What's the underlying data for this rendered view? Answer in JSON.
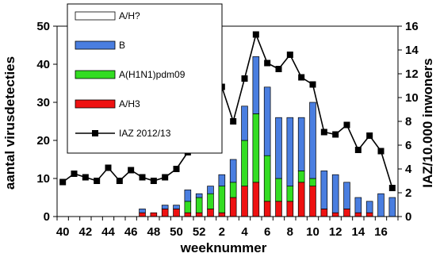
{
  "chart_data": {
    "type": "bar",
    "xlabel": "weeknummer",
    "ylabel_left": "aantal virusdetecties",
    "ylabel_right": "IAZ/10.000 inwoners",
    "ylim_left": [
      0,
      50
    ],
    "ylim_right": [
      0,
      16
    ],
    "yticks_left": [
      "0",
      "10",
      "20",
      "30",
      "40",
      "50"
    ],
    "yticks_right": [
      "0",
      "2",
      "4",
      "6",
      "8",
      "10",
      "12",
      "14",
      "16"
    ],
    "weeks": [
      40,
      41,
      42,
      43,
      44,
      45,
      46,
      47,
      48,
      49,
      50,
      51,
      52,
      1,
      2,
      3,
      4,
      5,
      6,
      7,
      8,
      9,
      10,
      11,
      12,
      13,
      14,
      15,
      16,
      17
    ],
    "xtick_labels": [
      "40",
      "42",
      "44",
      "46",
      "48",
      "50",
      "52",
      "2",
      "4",
      "6",
      "8",
      "10",
      "12",
      "14",
      "16"
    ],
    "legend": [
      {
        "name": "A/H?",
        "color": "#ffffff"
      },
      {
        "name": "B",
        "color": "#4a7ee0"
      },
      {
        "name": "A(H1N1)pdm09",
        "color": "#33dd22"
      },
      {
        "name": "A/H3",
        "color": "#ee1111"
      },
      {
        "name": "IAZ 2012/13",
        "color": "#000000"
      }
    ],
    "series": [
      {
        "name": "A/H3",
        "color": "#ee1111",
        "values": [
          0,
          0,
          0,
          0,
          0,
          0,
          0,
          1,
          1,
          2,
          2,
          1,
          1,
          2,
          1,
          5,
          8,
          9,
          4,
          4,
          4,
          9,
          8,
          2,
          1,
          2,
          1,
          1,
          0,
          0
        ]
      },
      {
        "name": "A(H1N1)pdm09",
        "color": "#33dd22",
        "values": [
          0,
          0,
          0,
          0,
          0,
          0,
          0,
          0,
          0,
          0,
          0,
          3,
          4,
          4,
          7,
          4,
          12,
          18,
          12,
          6,
          4,
          3,
          2,
          0,
          0,
          0,
          0,
          0,
          0,
          0
        ]
      },
      {
        "name": "B",
        "color": "#4a7ee0",
        "values": [
          0,
          0,
          0,
          0,
          0,
          0,
          0,
          1,
          0,
          1,
          1,
          3,
          1,
          2,
          3,
          6,
          9,
          15,
          18,
          16,
          18,
          14,
          20,
          10,
          10,
          7,
          4,
          3,
          6,
          5
        ]
      },
      {
        "name": "IAZ 2012/13",
        "color": "#000000",
        "values": [
          2.9,
          3.6,
          3.3,
          3.0,
          4.1,
          3.0,
          3.9,
          3.3,
          3.0,
          3.3,
          4.0,
          5.4,
          6.0,
          8.2,
          10.9,
          8.0,
          11.6,
          15.3,
          12.9,
          12.4,
          13.6,
          11.7,
          11.1,
          7.1,
          6.9,
          7.7,
          5.6,
          6.8,
          5.5,
          2.4
        ]
      }
    ]
  }
}
